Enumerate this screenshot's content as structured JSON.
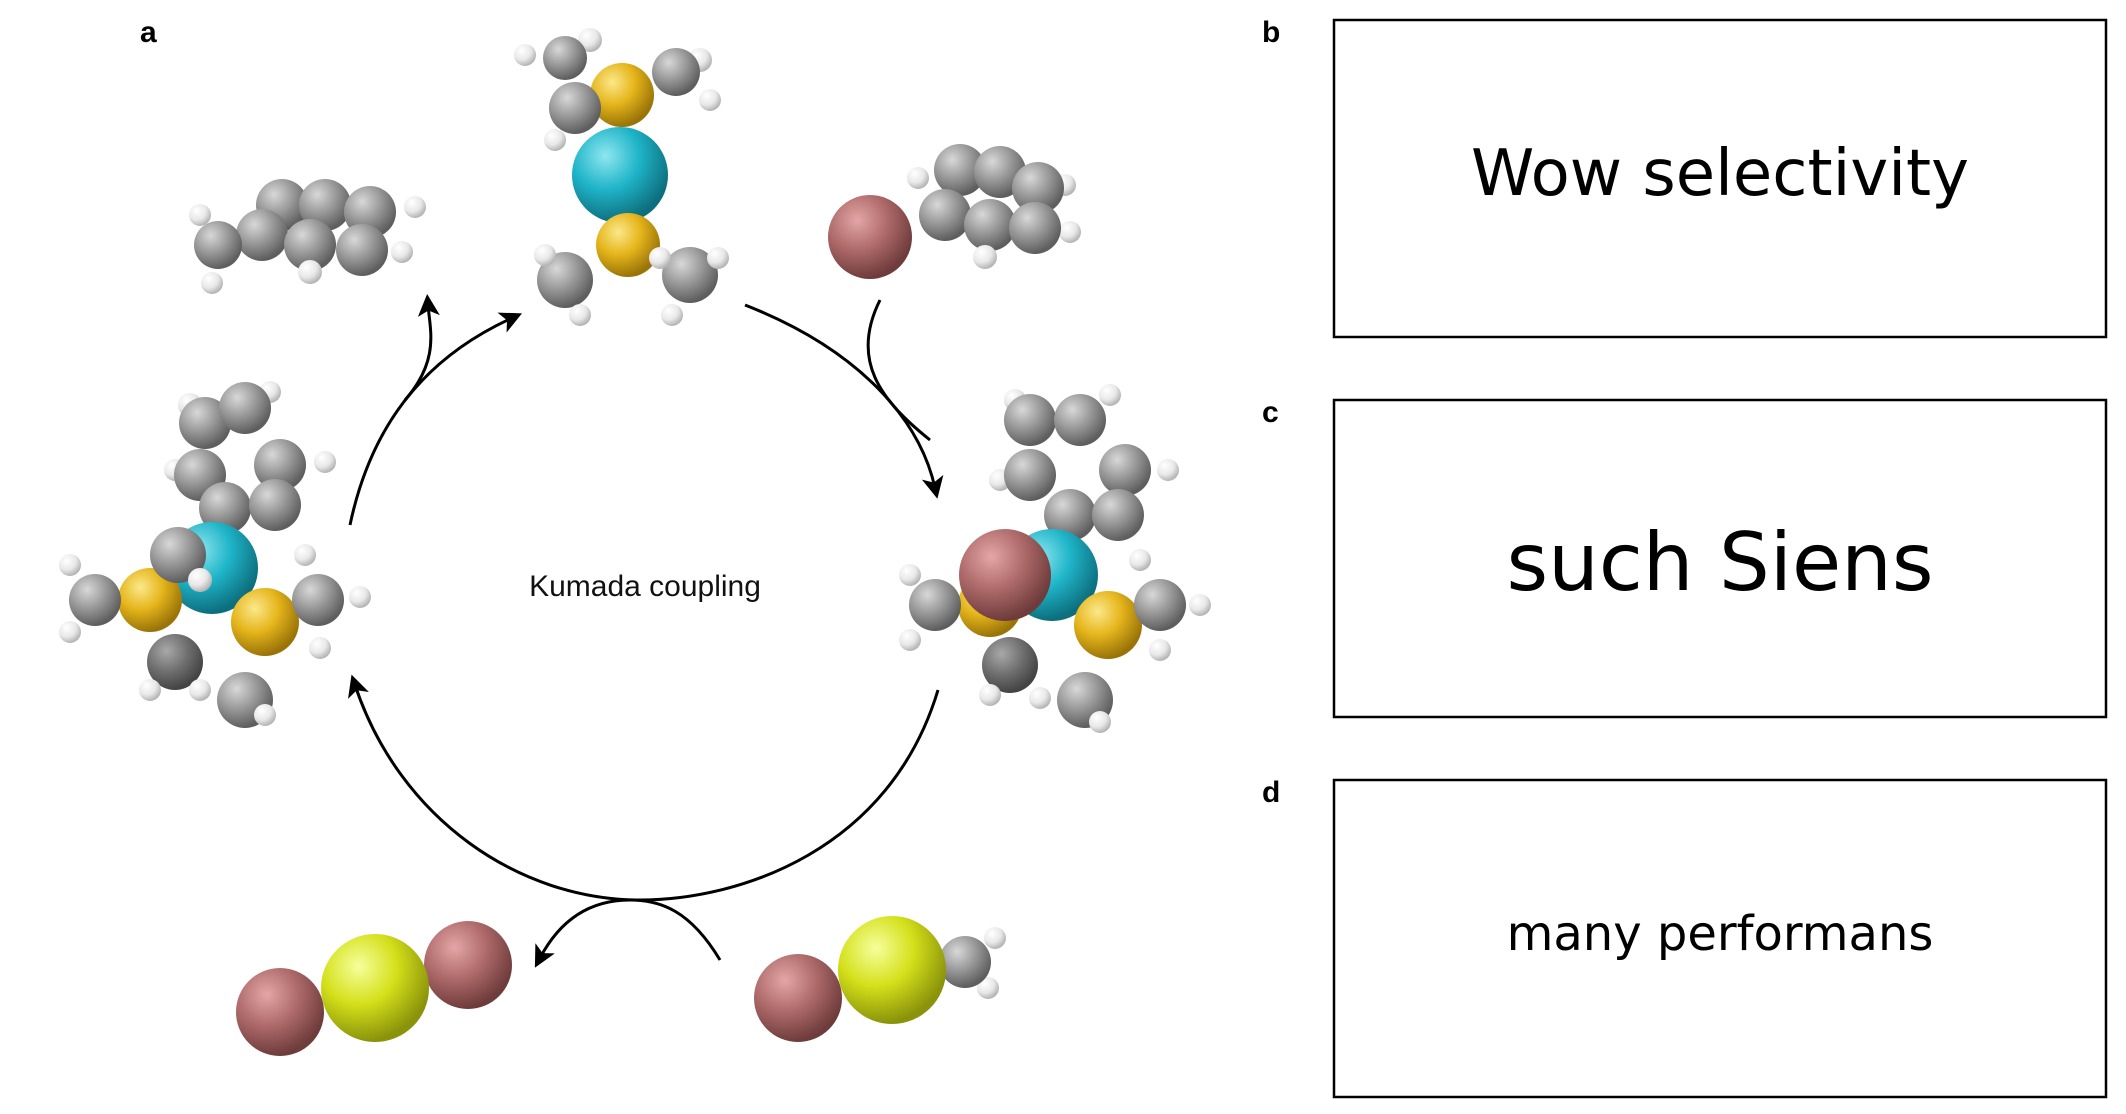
{
  "panel_a": {
    "letter": "a",
    "center_label": "Kumada coupling"
  },
  "panel_b": {
    "letter": "b",
    "text": "Wow selectivity"
  },
  "panel_c": {
    "letter": "c",
    "text": "such Siens"
  },
  "panel_d": {
    "letter": "d",
    "text": "many performans"
  },
  "colors": {
    "carbon": "#8f8f8f",
    "hydrogen": "#e6e6e6",
    "metal_center": "#1fb5c9",
    "phosphorus": "#e5b51b",
    "halide_brown": "#b06b6b",
    "magnesium_yellow": "#d4e01a",
    "arrow": "#000000",
    "box_border": "#000000"
  }
}
